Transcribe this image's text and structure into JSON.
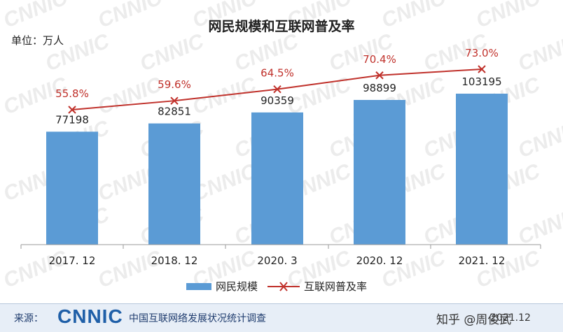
{
  "chart_data": {
    "type": "bar",
    "title": "网民规模和互联网普及率",
    "unit_label": "单位：万人",
    "categories": [
      "2017. 12",
      "2018. 12",
      "2020. 3",
      "2020. 12",
      "2021. 12"
    ],
    "series": [
      {
        "name": "网民规模",
        "kind": "bar",
        "values": [
          77198,
          82851,
          90359,
          98899,
          103195
        ],
        "labels": [
          "77198",
          "82851",
          "90359",
          "98899",
          "103195"
        ],
        "color": "#5b9bd5"
      },
      {
        "name": "互联网普及率",
        "kind": "line",
        "values": [
          55.8,
          59.6,
          64.5,
          70.4,
          73.0
        ],
        "labels": [
          "55.8%",
          "59.6%",
          "64.5%",
          "70.4%",
          "73.0%"
        ],
        "color": "#c0312b"
      }
    ],
    "legend": "bottom",
    "grid": false
  },
  "watermark": "CNNIC",
  "footer": {
    "source_label": "来源：",
    "logo_text": "CNNIC",
    "source_name": "中国互联网络发展状况统计调查",
    "credit": "知乎 @周俊武",
    "date": "2021.12"
  }
}
